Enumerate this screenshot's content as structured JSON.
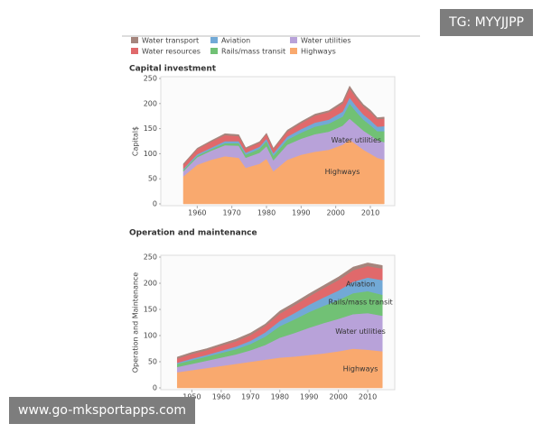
{
  "badge": "TG: MYYJJPP",
  "url": "www.go-mksportapps.com",
  "chart_data": [
    {
      "type": "stacked_area",
      "title": "Capital investment",
      "y_label": "Capital$",
      "x": [
        1956,
        1960,
        1964,
        1968,
        1972,
        1974,
        1978,
        1980,
        1982,
        1986,
        1990,
        1994,
        1998,
        2002,
        2004,
        2006,
        2008,
        2010,
        2012,
        2014
      ],
      "xlim": [
        1950,
        2016
      ],
      "xticks": [
        1960,
        1970,
        1980,
        1990,
        2000,
        2010
      ],
      "ylim": [
        0,
        250
      ],
      "yticks": [
        0,
        50,
        100,
        150,
        200,
        250
      ],
      "series": [
        {
          "name": "Highways",
          "color": "#f9a96e",
          "values": [
            55,
            78,
            88,
            95,
            92,
            72,
            80,
            90,
            65,
            88,
            98,
            104,
            108,
            118,
            128,
            118,
            108,
            100,
            92,
            88
          ]
        },
        {
          "name": "Water utilities",
          "color": "#b8a2d9",
          "values": [
            10,
            15,
            18,
            22,
            24,
            20,
            22,
            25,
            22,
            30,
            32,
            35,
            36,
            38,
            42,
            40,
            38,
            37,
            35,
            35
          ]
        },
        {
          "name": "Rails/mass transit",
          "color": "#71c175",
          "values": [
            3,
            3,
            3,
            4,
            5,
            6,
            8,
            10,
            9,
            10,
            12,
            15,
            16,
            18,
            30,
            25,
            22,
            20,
            18,
            22
          ]
        },
        {
          "name": "Aviation",
          "color": "#72a9d6",
          "values": [
            2,
            3,
            3,
            4,
            4,
            4,
            4,
            5,
            5,
            6,
            7,
            8,
            8,
            10,
            12,
            11,
            10,
            10,
            9,
            10
          ]
        },
        {
          "name": "Water resources",
          "color": "#e0696b",
          "values": [
            8,
            10,
            12,
            12,
            10,
            8,
            8,
            9,
            8,
            10,
            12,
            14,
            15,
            16,
            18,
            17,
            16,
            16,
            15,
            15
          ]
        },
        {
          "name": "Water transport",
          "color": "#a5857d",
          "values": [
            2,
            2,
            2,
            3,
            3,
            2,
            2,
            2,
            2,
            3,
            3,
            3,
            3,
            4,
            5,
            4,
            4,
            4,
            3,
            3
          ]
        }
      ]
    },
    {
      "type": "stacked_area",
      "title": "Operation and maintenance",
      "y_label": "Operation and Maintenance",
      "x": [
        1945,
        1950,
        1955,
        1960,
        1965,
        1970,
        1975,
        1980,
        1985,
        1990,
        1995,
        2000,
        2005,
        2010,
        2015
      ],
      "xlim": [
        1940,
        2018
      ],
      "xticks": [
        1950,
        1960,
        1970,
        1980,
        1990,
        2000,
        2010
      ],
      "ylim": [
        0,
        250
      ],
      "yticks": [
        0,
        50,
        100,
        150,
        200,
        250
      ],
      "series": [
        {
          "name": "Highways",
          "color": "#f9a96e",
          "values": [
            30,
            34,
            38,
            42,
            46,
            50,
            54,
            58,
            60,
            63,
            66,
            70,
            75,
            73,
            70
          ]
        },
        {
          "name": "Water utilities",
          "color": "#b8a2d9",
          "values": [
            10,
            12,
            14,
            16,
            18,
            22,
            28,
            38,
            45,
            52,
            58,
            62,
            66,
            70,
            68
          ]
        },
        {
          "name": "Rails/mass transit",
          "color": "#71c175",
          "values": [
            6,
            7,
            8,
            9,
            10,
            12,
            16,
            22,
            26,
            30,
            33,
            36,
            40,
            42,
            40
          ]
        },
        {
          "name": "Aviation",
          "color": "#72a9d6",
          "values": [
            2,
            3,
            3,
            4,
            5,
            6,
            8,
            10,
            12,
            14,
            16,
            18,
            22,
            26,
            28
          ]
        },
        {
          "name": "Water resources",
          "color": "#e0696b",
          "values": [
            8,
            9,
            9,
            10,
            10,
            11,
            12,
            14,
            15,
            16,
            18,
            20,
            22,
            22,
            22
          ]
        },
        {
          "name": "Water transport",
          "color": "#a5857d",
          "values": [
            3,
            3,
            3,
            3,
            4,
            4,
            4,
            5,
            5,
            5,
            5,
            6,
            6,
            6,
            6
          ]
        }
      ]
    }
  ]
}
